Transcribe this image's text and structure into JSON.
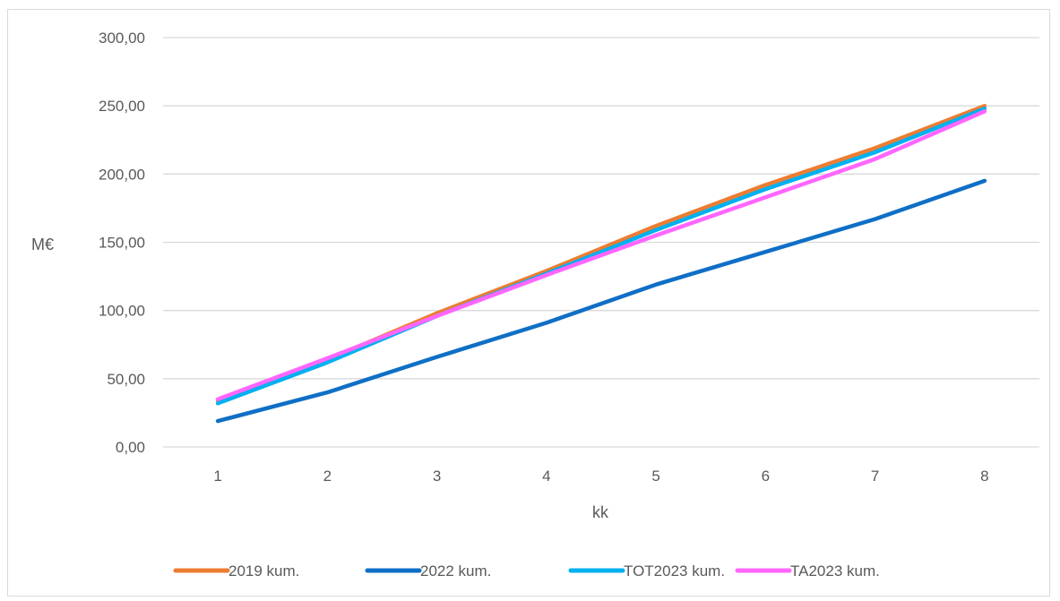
{
  "chart_data": {
    "type": "line",
    "xlabel": "kk",
    "ylabel": "M€",
    "categories": [
      "1",
      "2",
      "3",
      "4",
      "5",
      "6",
      "7",
      "8"
    ],
    "ylim": [
      0,
      300
    ],
    "yticks": [
      "0,00",
      "50,00",
      "100,00",
      "150,00",
      "200,00",
      "250,00",
      "300,00"
    ],
    "grid": true,
    "legend_position": "bottom",
    "series": [
      {
        "name": "2019 kum.",
        "color": "#ED7D31",
        "values": [
          34,
          64,
          98,
          129,
          162,
          192,
          219,
          250
        ]
      },
      {
        "name": "2022 kum.",
        "color": "#0F6FC6",
        "values": [
          19,
          40,
          66,
          91,
          119,
          143,
          167,
          195
        ]
      },
      {
        "name": "TOT2023 kum.",
        "color": "#00B0F0",
        "values": [
          32,
          62,
          96,
          127,
          159,
          189,
          216,
          248
        ]
      },
      {
        "name": "TA2023 kum.",
        "color": "#FF66FF",
        "values": [
          35,
          65,
          96,
          126,
          155,
          183,
          211,
          246
        ]
      }
    ]
  }
}
